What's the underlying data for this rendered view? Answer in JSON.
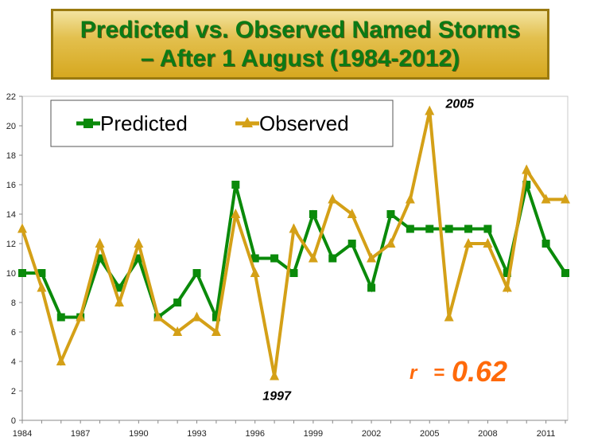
{
  "title": {
    "line1": "Predicted vs. Observed Named Storms",
    "line2": "– After 1 August (1984-2012)"
  },
  "chart_data": {
    "type": "line",
    "x": [
      1984,
      1985,
      1986,
      1987,
      1988,
      1989,
      1990,
      1991,
      1992,
      1993,
      1994,
      1995,
      1996,
      1997,
      1998,
      1999,
      2000,
      2001,
      2002,
      2003,
      2004,
      2005,
      2006,
      2007,
      2008,
      2009,
      2010,
      2011,
      2012
    ],
    "x_tick_labels": [
      "1984",
      "1987",
      "1990",
      "1993",
      "1996",
      "1999",
      "2002",
      "2005",
      "2008",
      "2011"
    ],
    "y_ticks": [
      0,
      2,
      4,
      6,
      8,
      10,
      12,
      14,
      16,
      18,
      20,
      22
    ],
    "ylim": [
      0,
      22
    ],
    "grid": false,
    "legend_position": "top-left",
    "series": [
      {
        "name": "Predicted",
        "color": "#0a8a0a",
        "marker": "square",
        "values": [
          10,
          10,
          7,
          7,
          11,
          9,
          11,
          7,
          8,
          10,
          7,
          16,
          11,
          11,
          10,
          14,
          11,
          12,
          9,
          14,
          13,
          13,
          13,
          13,
          13,
          10,
          16,
          12,
          10
        ]
      },
      {
        "name": "Observed",
        "color": "#d4a017",
        "marker": "triangle",
        "values": [
          13,
          9,
          4,
          7,
          12,
          8,
          12,
          7,
          6,
          7,
          6,
          14,
          10,
          3,
          13,
          11,
          15,
          14,
          11,
          12,
          15,
          21,
          7,
          12,
          12,
          9,
          17,
          15,
          15
        ]
      }
    ],
    "annotations": [
      {
        "text": "2005",
        "x": 2005,
        "y": 21
      },
      {
        "text": "1997",
        "x": 1997,
        "y": 3
      }
    ],
    "correlation": {
      "symbol": "r",
      "equals": "=",
      "value": "0.62"
    }
  }
}
